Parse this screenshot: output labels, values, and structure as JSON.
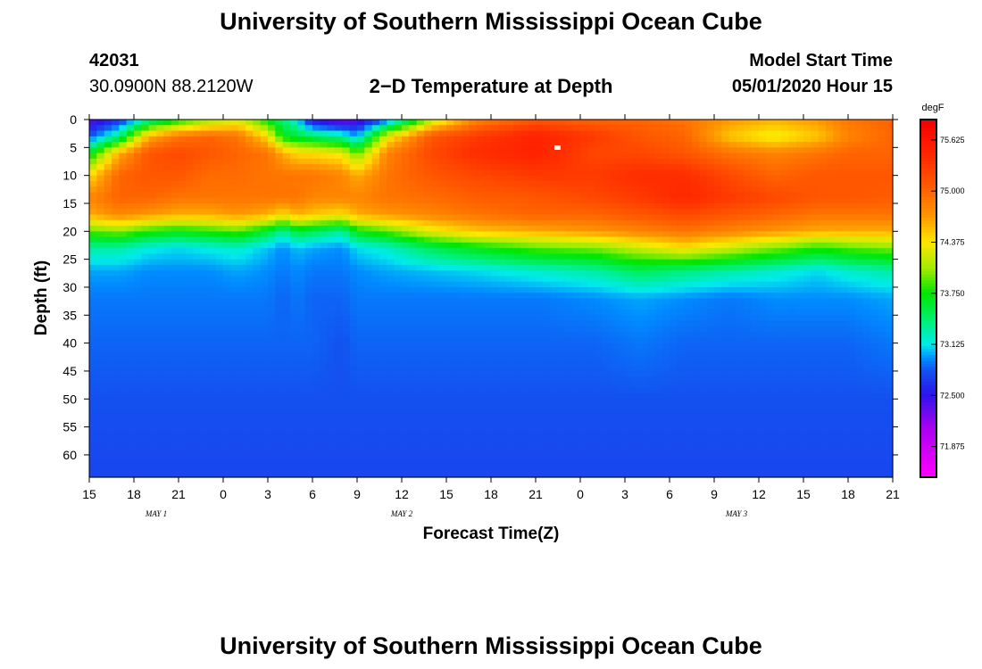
{
  "header": {
    "title": "University of Southern Mississippi Ocean Cube",
    "station_id": "42031",
    "location": "30.0900N 88.2120W",
    "plot_title": "2−D Temperature at Depth",
    "model_start_label": "Model Start Time",
    "model_start_value": "05/01/2020 Hour 15"
  },
  "footer": {
    "title": "University of Southern Mississippi Ocean Cube"
  },
  "chart_data": {
    "type": "heatmap",
    "title": "2−D Temperature at Depth",
    "xlabel": "Forecast Time(Z)",
    "ylabel": "Depth (ft)",
    "x_tick_labels": [
      "15",
      "18",
      "21",
      "0",
      "3",
      "6",
      "9",
      "12",
      "15",
      "18",
      "21",
      "0",
      "3",
      "6",
      "9",
      "12",
      "15",
      "18",
      "21"
    ],
    "x_range_hours": [
      0,
      54
    ],
    "day_labels": [
      {
        "label": "MAY 1",
        "hour": 4.5
      },
      {
        "label": "MAY 2",
        "hour": 21
      },
      {
        "label": "MAY 3",
        "hour": 43.5
      }
    ],
    "y_tick_labels": [
      "0",
      "5",
      "10",
      "15",
      "20",
      "25",
      "30",
      "35",
      "40",
      "45",
      "50",
      "55",
      "60"
    ],
    "y_ticks": [
      0,
      5,
      10,
      15,
      20,
      25,
      30,
      35,
      40,
      45,
      50,
      55,
      60
    ],
    "ylim": [
      0,
      64
    ],
    "colorbar": {
      "unit": "degF",
      "tick_labels": [
        "75.625",
        "75.000",
        "74.375",
        "73.750",
        "73.125",
        "72.500",
        "71.875"
      ],
      "tick_values": [
        75.625,
        75.0,
        74.375,
        73.75,
        73.125,
        72.5,
        71.875
      ],
      "range": [
        71.5,
        75.875
      ]
    },
    "profile_hours": [
      0,
      2,
      4,
      6,
      8,
      10,
      12,
      13,
      14,
      15,
      17,
      18,
      20,
      23,
      26,
      30,
      34,
      37,
      40,
      43,
      46,
      49,
      51,
      54
    ],
    "profile_depths": [
      0,
      3,
      6,
      10,
      14,
      17,
      20,
      23,
      27,
      32,
      40,
      50,
      64
    ],
    "temperature_degF": [
      [
        72.3,
        72.8,
        73.6,
        74.4,
        74.8,
        74.6,
        73.9,
        73.3,
        73.0,
        72.9,
        72.85,
        72.8,
        72.75
      ],
      [
        72.6,
        73.4,
        74.6,
        75.0,
        75.0,
        74.8,
        74.0,
        73.3,
        73.0,
        72.9,
        72.85,
        72.8,
        72.75
      ],
      [
        73.3,
        74.6,
        75.1,
        75.1,
        75.0,
        74.7,
        73.8,
        73.15,
        72.95,
        72.9,
        72.85,
        72.8,
        72.75
      ],
      [
        73.7,
        74.9,
        75.2,
        75.1,
        74.9,
        74.6,
        73.7,
        73.1,
        72.95,
        72.9,
        72.85,
        72.8,
        72.75
      ],
      [
        74.0,
        75.0,
        75.1,
        74.95,
        74.9,
        74.6,
        73.8,
        73.15,
        72.95,
        72.9,
        72.85,
        72.8,
        72.75
      ],
      [
        74.2,
        74.9,
        75.0,
        74.95,
        74.9,
        74.7,
        73.9,
        73.2,
        73.0,
        72.9,
        72.85,
        72.8,
        72.75
      ],
      [
        73.7,
        74.4,
        74.9,
        74.9,
        74.9,
        74.6,
        73.6,
        73.05,
        72.95,
        72.9,
        72.85,
        72.8,
        72.75
      ],
      [
        73.4,
        73.7,
        74.6,
        74.9,
        74.9,
        74.4,
        73.3,
        72.95,
        72.9,
        72.85,
        72.85,
        72.8,
        72.75
      ],
      [
        73.1,
        73.6,
        74.4,
        74.9,
        74.9,
        74.6,
        73.6,
        73.05,
        72.95,
        72.9,
        72.85,
        72.8,
        72.75
      ],
      [
        72.4,
        73.5,
        74.4,
        74.9,
        74.8,
        74.5,
        73.5,
        73.0,
        72.9,
        72.85,
        72.85,
        72.8,
        72.75
      ],
      [
        72.2,
        73.3,
        74.3,
        74.8,
        74.8,
        74.4,
        73.3,
        72.95,
        72.9,
        72.85,
        72.8,
        72.8,
        72.75
      ],
      [
        72.3,
        73.0,
        73.9,
        74.6,
        74.8,
        74.6,
        73.7,
        73.1,
        72.95,
        72.9,
        72.85,
        72.8,
        72.75
      ],
      [
        72.8,
        74.3,
        74.8,
        74.9,
        74.9,
        74.7,
        73.9,
        73.2,
        73.0,
        72.9,
        72.85,
        72.8,
        72.75
      ],
      [
        74.1,
        75.1,
        75.2,
        75.1,
        74.95,
        74.8,
        74.3,
        73.5,
        73.05,
        72.9,
        72.85,
        72.8,
        72.75
      ],
      [
        74.8,
        75.3,
        75.4,
        75.2,
        75.05,
        74.9,
        74.5,
        73.7,
        73.1,
        72.9,
        72.85,
        72.8,
        72.75
      ],
      [
        75.1,
        75.5,
        75.5,
        75.3,
        75.1,
        75.0,
        74.6,
        73.9,
        73.2,
        72.9,
        72.85,
        72.8,
        72.75
      ],
      [
        75.0,
        75.3,
        75.2,
        75.3,
        75.2,
        75.0,
        74.7,
        74.0,
        73.3,
        72.95,
        72.85,
        72.8,
        72.75
      ],
      [
        75.0,
        75.1,
        75.2,
        75.4,
        75.3,
        75.1,
        74.8,
        74.2,
        73.5,
        73.0,
        72.9,
        72.8,
        72.75
      ],
      [
        74.9,
        75.0,
        75.1,
        75.4,
        75.45,
        75.2,
        74.9,
        74.4,
        73.4,
        72.95,
        72.85,
        72.8,
        72.75
      ],
      [
        74.7,
        74.5,
        74.9,
        75.2,
        75.3,
        75.1,
        74.8,
        74.2,
        73.3,
        72.9,
        72.85,
        72.8,
        72.75
      ],
      [
        74.6,
        74.3,
        74.8,
        75.0,
        75.2,
        75.0,
        74.7,
        74.0,
        73.2,
        72.95,
        72.85,
        72.8,
        72.75
      ],
      [
        74.7,
        74.5,
        74.9,
        75.1,
        75.1,
        74.9,
        74.6,
        73.8,
        73.1,
        72.95,
        72.85,
        72.8,
        72.75
      ],
      [
        74.9,
        74.8,
        75.0,
        75.1,
        75.1,
        74.9,
        74.6,
        73.9,
        73.2,
        72.95,
        72.85,
        72.8,
        72.75
      ],
      [
        75.0,
        75.0,
        75.0,
        75.1,
        75.05,
        74.9,
        74.6,
        74.0,
        73.3,
        73.0,
        72.9,
        72.8,
        72.75
      ]
    ]
  }
}
